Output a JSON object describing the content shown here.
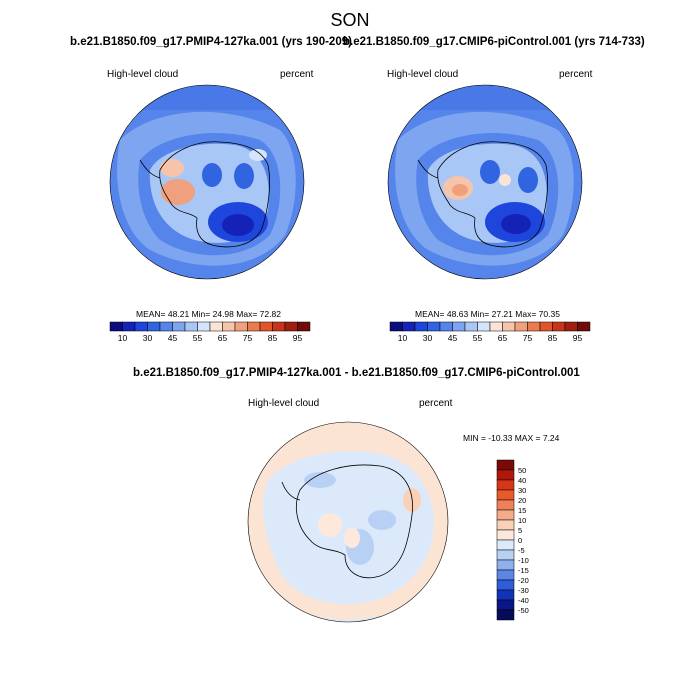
{
  "title": "SON",
  "panels": [
    {
      "id": "pmip4",
      "title": "b.e21.B1850.f09_g17.PMIP4-127ka.001 (yrs 190-209)",
      "left_label": "High-level cloud",
      "right_label": "percent",
      "stats": {
        "mean_label": "MEAN=",
        "mean": "48.21",
        "min_label": "Min=",
        "min": "24.98",
        "max_label": "Max=",
        "max": "72.82"
      }
    },
    {
      "id": "picontrol",
      "title": "b.e21.B1850.f09_g17.CMIP6-piControl.001 (yrs 714-733)",
      "left_label": "High-level cloud",
      "right_label": "percent",
      "stats": {
        "mean_label": "MEAN=",
        "mean": "48.63",
        "min_label": "Min=",
        "min": "27.21",
        "max_label": "Max=",
        "max": "70.35"
      }
    },
    {
      "id": "difference",
      "title": "b.e21.B1850.f09_g17.PMIP4-127ka.001 - b.e21.B1850.f09_g17.CMIP6-piControl.001",
      "left_label": "High-level cloud",
      "right_label": "percent",
      "stats_text": "MIN = -10.33 MAX =   7.24"
    }
  ],
  "colorbar_abs": {
    "labels": [
      "10",
      "30",
      "45",
      "55",
      "65",
      "75",
      "85",
      "95"
    ],
    "colors": [
      "#0b0d7c",
      "#1422b8",
      "#1f46dc",
      "#3164e0",
      "#5585ea",
      "#7ea6f0",
      "#a9c7f6",
      "#d3e4fb",
      "#fbe4d4",
      "#f6c4aa",
      "#f0a07c",
      "#ea7a50",
      "#e0542a",
      "#c8341a",
      "#a01e10",
      "#6e0c08"
    ]
  },
  "colorbar_diff": {
    "labels": [
      "50",
      "40",
      "30",
      "20",
      "15",
      "10",
      "5",
      "0",
      "-5",
      "-10",
      "-15",
      "-20",
      "-30",
      "-40",
      "-50"
    ],
    "colors": [
      "#7a0a06",
      "#b0180c",
      "#d8361a",
      "#e85a2a",
      "#ef8158",
      "#f5aa88",
      "#fbd0b8",
      "#fde9dc",
      "#dce9fb",
      "#b9d0f5",
      "#8fb0ee",
      "#5d85e4",
      "#2f5cd8",
      "#1233b6",
      "#0a1588",
      "#060b5a"
    ]
  },
  "map_colors": {
    "ocean_abs": "#5585ea",
    "rim_abs": "#7ea6f0",
    "ocean_diff": "#fbe4d4",
    "ice_diff": "#dce9fb",
    "coast": "#000000"
  }
}
